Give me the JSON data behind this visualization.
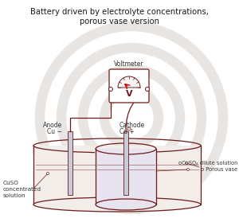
{
  "title": "Battery driven by electrolyte concentrations,\nporous vase version",
  "bg_color": "#ffffff",
  "line_color": "#6b1a1a",
  "voltmeter_label": "Voltmeter",
  "V_label": "V",
  "anode_label1": "Anode",
  "anode_label2": "Cu −",
  "cathode_label1": "Cathode",
  "cathode_label2": "Cu +",
  "label_cuso4": "oCuSO₄ dilute solution",
  "label_porous": "o Porous vase",
  "label_conc1": "CuSO",
  "label_conc2": "concentrated",
  "label_conc3": "solution",
  "watermark_color": "#d9d5d1",
  "watermark_alpha": 0.6,
  "outer_fill": "#f2ede8",
  "inner_fill": "#e8e4ef",
  "electrode_fill": "#c8ccd8"
}
